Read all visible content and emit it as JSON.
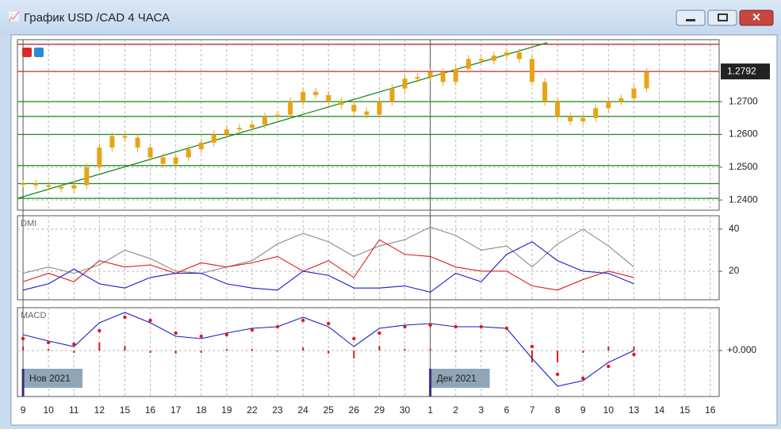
{
  "window": {
    "title": "График USD /CAD  4 ЧАСА"
  },
  "x_axis": {
    "categories": [
      "9",
      "10",
      "11",
      "12",
      "15",
      "16",
      "17",
      "18",
      "19",
      "22",
      "23",
      "24",
      "25",
      "26",
      "29",
      "30",
      "1",
      "2",
      "3",
      "6",
      "7",
      "8",
      "9",
      "10",
      "13",
      "14",
      "15",
      "16"
    ],
    "xlim": [
      -0.22,
      27.35
    ],
    "period_labels": [
      {
        "x": 0,
        "label": "Нов 2021"
      },
      {
        "x": 16,
        "label": "Дек 2021"
      }
    ]
  },
  "chart_data": [
    {
      "type": "candlestick",
      "color": "#e8a317",
      "ylim": [
        1.2369,
        1.2889
      ],
      "yticks": [
        {
          "value": 1.24,
          "label": "1.2400"
        },
        {
          "value": 1.25,
          "label": "1.2500"
        },
        {
          "value": 1.26,
          "label": "1.2600"
        },
        {
          "value": 1.27,
          "label": "1.2700"
        }
      ],
      "last_price": {
        "value": 1.2792,
        "label": "1.2792"
      },
      "levels": [
        {
          "value": 1.2875,
          "color": "#c0282d"
        },
        {
          "value": 1.2792,
          "color": "#c0282d"
        },
        {
          "value": 1.27,
          "color": "#1a8a1a"
        },
        {
          "value": 1.2655,
          "color": "#1a8a1a"
        },
        {
          "value": 1.26,
          "color": "#1a8a1a"
        },
        {
          "value": 1.2505,
          "color": "#1a8a1a"
        },
        {
          "value": 1.245,
          "color": "#1a8a1a"
        },
        {
          "value": 1.2405,
          "color": "#1a8a1a"
        }
      ],
      "trendline": {
        "x": [
          -0.22,
          20.6
        ],
        "y": [
          1.2405,
          1.288
        ],
        "color": "#1a8a1a"
      },
      "x": [
        0,
        0.5,
        1,
        1.5,
        2,
        2.5,
        3,
        3.5,
        4,
        4.5,
        5,
        5.5,
        6,
        6.5,
        7,
        7.5,
        8,
        8.5,
        9,
        9.5,
        10,
        10.5,
        11,
        11.5,
        12,
        12.5,
        13,
        13.5,
        14,
        14.5,
        15,
        15.5,
        16,
        16.5,
        17,
        17.5,
        18,
        18.5,
        19,
        19.5,
        20,
        20.5,
        21,
        21.5,
        22,
        22.5,
        23,
        23.5,
        24,
        24.5
      ],
      "values": [
        1.245,
        1.2445,
        1.244,
        1.2435,
        1.2445,
        1.25,
        1.256,
        1.2595,
        1.259,
        1.256,
        1.253,
        1.251,
        1.253,
        1.2555,
        1.2575,
        1.26,
        1.2615,
        1.262,
        1.263,
        1.2655,
        1.266,
        1.27,
        1.273,
        1.272,
        1.27,
        1.269,
        1.267,
        1.266,
        1.27,
        1.274,
        1.277,
        1.2775,
        1.279,
        1.276,
        1.28,
        1.283,
        1.2825,
        1.284,
        1.285,
        1.283,
        1.276,
        1.27,
        1.2655,
        1.264,
        1.265,
        1.268,
        1.27,
        1.271,
        1.274,
        1.279
      ]
    },
    {
      "type": "line",
      "title": "DMI",
      "ylim": [
        6.4,
        46.4
      ],
      "yticks": [
        20,
        40
      ],
      "x": [
        0,
        1,
        2,
        3,
        4,
        5,
        6,
        7,
        8,
        9,
        10,
        11,
        12,
        13,
        14,
        15,
        16,
        17,
        18,
        19,
        20,
        21,
        22,
        23,
        24
      ],
      "series": [
        {
          "color": "#8a8a8a",
          "values": [
            19,
            22,
            19,
            23,
            30,
            26,
            20,
            19,
            22,
            25,
            33,
            38,
            34,
            27,
            32,
            35,
            41,
            37,
            30,
            32,
            22,
            33,
            40,
            32,
            22
          ]
        },
        {
          "color": "#e01818",
          "values": [
            15,
            19,
            15,
            25,
            22,
            23,
            19,
            24,
            22,
            24,
            27,
            20,
            25,
            17,
            35,
            28,
            27,
            22,
            20,
            20,
            13,
            11,
            16,
            20,
            17
          ]
        },
        {
          "color": "#1a1ad0",
          "values": [
            11,
            14,
            21,
            14,
            12,
            17,
            19,
            19,
            14,
            12,
            11,
            20,
            18,
            12,
            12,
            13,
            10,
            19,
            15,
            28,
            34,
            25,
            20,
            19,
            14
          ]
        }
      ]
    },
    {
      "type": "macd",
      "title": "MACD",
      "ylim": [
        -0.0058,
        0.0054
      ],
      "yticks": [
        {
          "value": 0,
          "label": "+0.000"
        }
      ],
      "x": [
        0,
        1,
        2,
        3,
        4,
        5,
        6,
        7,
        8,
        9,
        10,
        11,
        12,
        13,
        14,
        15,
        16,
        17,
        18,
        19,
        20,
        21,
        22,
        23,
        24
      ],
      "macd": {
        "color": "#1a1ad0",
        "values": [
          0.002,
          0.0012,
          0.0005,
          0.0035,
          0.0048,
          0.0035,
          0.0018,
          0.0015,
          0.0022,
          0.0028,
          0.003,
          0.0042,
          0.003,
          0.0005,
          0.0028,
          0.0032,
          0.0034,
          0.003,
          0.003,
          0.0028,
          -0.001,
          -0.0045,
          -0.0038,
          -0.0015,
          0
        ]
      },
      "signal": {
        "color": "#e01818",
        "values": [
          0.0015,
          0.001,
          0.0008,
          0.0025,
          0.0042,
          0.0038,
          0.0022,
          0.0018,
          0.002,
          0.0026,
          0.003,
          0.0038,
          0.0034,
          0.0015,
          0.0022,
          0.003,
          0.0032,
          0.003,
          0.003,
          0.0028,
          0.0005,
          -0.003,
          -0.0035,
          -0.002,
          -0.0005
        ]
      },
      "histogram": {
        "color": "#e01818",
        "values": [
          0.0005,
          0.0002,
          -0.0003,
          0.001,
          0.0006,
          -0.0003,
          -0.0004,
          -0.0003,
          0.0002,
          0.0002,
          0,
          0.0004,
          -0.0004,
          -0.001,
          0.0006,
          0.0002,
          0.0002,
          0,
          0,
          0,
          -0.0015,
          -0.0015,
          -0.0003,
          0.0005,
          0.0005
        ]
      }
    }
  ]
}
